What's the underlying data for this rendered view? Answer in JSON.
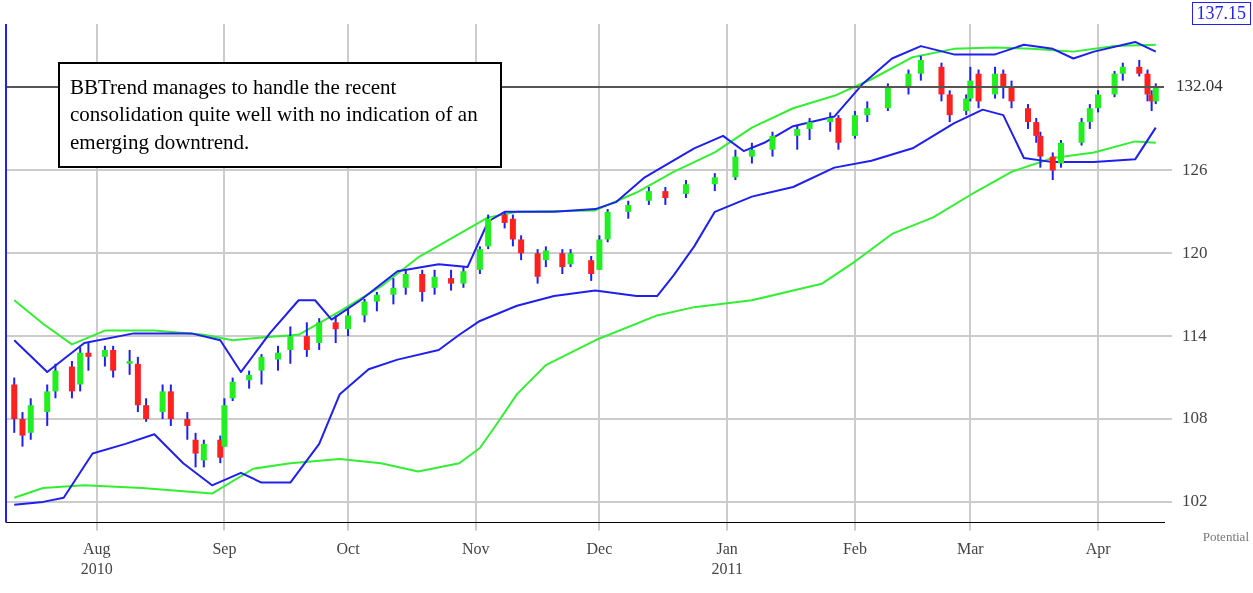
{
  "chart_data": {
    "type": "candlestick",
    "xlim": [
      "2010-07-10",
      "2011-04-17"
    ],
    "xticks": [
      {
        "value": "2010-08-01",
        "label": "Aug\n2010"
      },
      {
        "value": "2010-09-01",
        "label": "Sep"
      },
      {
        "value": "2010-10-01",
        "label": "Oct"
      },
      {
        "value": "2010-11-01",
        "label": "Nov"
      },
      {
        "value": "2010-12-01",
        "label": "Dec"
      },
      {
        "value": "2011-01-01",
        "label": "Jan\n2011"
      },
      {
        "value": "2011-02-01",
        "label": "Feb"
      },
      {
        "value": "2011-03-01",
        "label": "Mar"
      },
      {
        "value": "2011-04-01",
        "label": "Apr"
      }
    ],
    "ylim": [
      100.5,
      136.6
    ],
    "yticks": [
      102,
      108,
      114,
      120,
      126
    ],
    "grid": true,
    "legend": false,
    "ref_lines": [
      {
        "axis": "y",
        "value": 132.04,
        "label": "132.04",
        "color": "#555555"
      }
    ],
    "annotations": [
      "BBTrend manages to handle the recent consolidation quite well with no indication of an emerging downtrend.",
      "137.15",
      "Potential"
    ],
    "series": [
      {
        "color": "#2020ee",
        "x": [
          "2010-07-12",
          "2010-07-14",
          "2010-07-16",
          "2010-07-20",
          "2010-07-22",
          "2010-07-26",
          "2010-07-28",
          "2010-07-30",
          "2010-08-03",
          "2010-08-05",
          "2010-08-09",
          "2010-08-11",
          "2010-08-13",
          "2010-08-17",
          "2010-08-19",
          "2010-08-23",
          "2010-08-25",
          "2010-08-27",
          "2010-08-31",
          "2010-09-01",
          "2010-09-03",
          "2010-09-07",
          "2010-09-10",
          "2010-09-14",
          "2010-09-17",
          "2010-09-21",
          "2010-09-24",
          "2010-09-28",
          "2010-10-01",
          "2010-10-05",
          "2010-10-08",
          "2010-10-12",
          "2010-10-15",
          "2010-10-19",
          "2010-10-22",
          "2010-10-26",
          "2010-10-29",
          "2010-11-02",
          "2010-11-04",
          "2010-11-08",
          "2010-11-10",
          "2010-11-12",
          "2010-11-16",
          "2010-11-18",
          "2010-11-22",
          "2010-11-24",
          "2010-11-29",
          "2010-12-01",
          "2010-12-03",
          "2010-12-08",
          "2010-12-13",
          "2010-12-17",
          "2010-12-22",
          "2010-12-29",
          "2011-01-03",
          "2011-01-07",
          "2011-01-12",
          "2011-01-18",
          "2011-01-21",
          "2011-01-26",
          "2011-01-28",
          "2011-02-01",
          "2011-02-04",
          "2011-02-09",
          "2011-02-14",
          "2011-02-17",
          "2011-02-22",
          "2011-02-24",
          "2011-02-28",
          "2011-03-01",
          "2011-03-03",
          "2011-03-07",
          "2011-03-09",
          "2011-03-11",
          "2011-03-15",
          "2011-03-17",
          "2011-03-18",
          "2011-03-21",
          "2011-03-23",
          "2011-03-28",
          "2011-03-30",
          "2011-04-01",
          "2011-04-05",
          "2011-04-07",
          "2011-04-11",
          "2011-04-13",
          "2011-04-14",
          "2011-04-15"
        ],
        "ohlc": [
          [
            110.5,
            111,
            107,
            108
          ],
          [
            108,
            108.5,
            106,
            106.8
          ],
          [
            107,
            109.5,
            106.5,
            109
          ],
          [
            108.5,
            110.5,
            107.5,
            110
          ],
          [
            110,
            112,
            109.5,
            111.5
          ],
          [
            111.8,
            112.2,
            109.5,
            110
          ],
          [
            110.5,
            113.2,
            110,
            112.8
          ],
          [
            112.8,
            113.5,
            111.5,
            112.5
          ],
          [
            112.5,
            113.3,
            111.8,
            113
          ],
          [
            113,
            113.3,
            111,
            111.5
          ],
          [
            112,
            113,
            111.2,
            112.2
          ],
          [
            112,
            112.5,
            108.5,
            109
          ],
          [
            109,
            109.5,
            107.8,
            108
          ],
          [
            108.5,
            110.5,
            108,
            110
          ],
          [
            110,
            110.5,
            107.5,
            108
          ],
          [
            108,
            108.5,
            106.5,
            107.5
          ],
          [
            106.5,
            107,
            104.5,
            105.5
          ],
          [
            105,
            106.5,
            104.5,
            106.2
          ],
          [
            106.5,
            106.8,
            104.8,
            105.2
          ],
          [
            106,
            109.5,
            106,
            109
          ],
          [
            109.5,
            111,
            109.3,
            110.7
          ],
          [
            110.8,
            111.5,
            110.2,
            111.2
          ],
          [
            111.5,
            112.7,
            110.5,
            112.5
          ],
          [
            112.3,
            113.3,
            111.5,
            112.8
          ],
          [
            113,
            114.7,
            112,
            114
          ],
          [
            114,
            115,
            112.5,
            113
          ],
          [
            113.5,
            115.3,
            113,
            115
          ],
          [
            115,
            115.5,
            113.5,
            114.5
          ],
          [
            114.5,
            116,
            114,
            115.5
          ],
          [
            115.5,
            116.7,
            115,
            116.5
          ],
          [
            116.5,
            117.2,
            115.8,
            117
          ],
          [
            117,
            118.2,
            116.3,
            117.5
          ],
          [
            117.5,
            118.8,
            117,
            118.5
          ],
          [
            118.5,
            118.8,
            116.5,
            117.2
          ],
          [
            117.5,
            118.8,
            117,
            118.3
          ],
          [
            118.2,
            118.8,
            117.3,
            117.8
          ],
          [
            117.8,
            119,
            117.5,
            118.7
          ],
          [
            118.8,
            120.5,
            118.5,
            120.3
          ],
          [
            120.5,
            122.8,
            120.3,
            122.5
          ],
          [
            122.8,
            123,
            121.8,
            122.2
          ],
          [
            122.5,
            122.8,
            120.5,
            121
          ],
          [
            121,
            121.3,
            119.5,
            120
          ],
          [
            120,
            120.3,
            117.8,
            118.3
          ],
          [
            119.5,
            120.5,
            119,
            120.2
          ],
          [
            120,
            120.3,
            118.5,
            119
          ],
          [
            119.2,
            120.3,
            119,
            120
          ],
          [
            119.5,
            119.8,
            118,
            118.5
          ],
          [
            118.8,
            121.3,
            118.8,
            121
          ],
          [
            121,
            123.2,
            120.8,
            123
          ],
          [
            123,
            123.8,
            122.5,
            123.5
          ],
          [
            123.8,
            124.8,
            123.5,
            124.5
          ],
          [
            124.5,
            124.8,
            123.5,
            124
          ],
          [
            124.3,
            125.3,
            124,
            125
          ],
          [
            125,
            125.8,
            124.5,
            125.5
          ],
          [
            125.5,
            127.5,
            125.3,
            127
          ],
          [
            127,
            128,
            126.5,
            127.5
          ],
          [
            127.5,
            128.8,
            127,
            128.5
          ],
          [
            128.5,
            129.3,
            127.5,
            129
          ],
          [
            129,
            129.8,
            128.2,
            129.5
          ],
          [
            129.5,
            130.2,
            128.8,
            129.8
          ],
          [
            129.8,
            130,
            127.5,
            128
          ],
          [
            128.5,
            130.3,
            128.3,
            130
          ],
          [
            130,
            131,
            129.5,
            130.5
          ],
          [
            130.5,
            132.3,
            130.3,
            132
          ],
          [
            132,
            133.3,
            131.5,
            133
          ],
          [
            133,
            134.3,
            132.5,
            134
          ],
          [
            133.5,
            133.8,
            131,
            131.5
          ],
          [
            131.5,
            131.8,
            129.5,
            130
          ],
          [
            130.3,
            131.5,
            130,
            131.2
          ],
          [
            131.2,
            133.5,
            131,
            132.5
          ],
          [
            133,
            133.3,
            130.5,
            131
          ],
          [
            131.5,
            133.5,
            131.2,
            133
          ],
          [
            133,
            133.3,
            131.2,
            132
          ],
          [
            132,
            132.5,
            130.5,
            131
          ],
          [
            130.5,
            130.8,
            129,
            129.5
          ],
          [
            129.5,
            129.8,
            128,
            128.5
          ],
          [
            128.5,
            128.8,
            126.2,
            127
          ],
          [
            127,
            127.3,
            125.3,
            126
          ],
          [
            126.5,
            128.2,
            126.2,
            128
          ],
          [
            128,
            129.8,
            127.8,
            129.5
          ],
          [
            129.5,
            130.8,
            129,
            130.5
          ],
          [
            130.5,
            131.8,
            130.2,
            131.5
          ],
          [
            131.5,
            133.2,
            131.3,
            133
          ],
          [
            133,
            133.8,
            132.5,
            133.5
          ],
          [
            133.5,
            134,
            132.8,
            133
          ],
          [
            133,
            133.3,
            131,
            131.5
          ],
          [
            131.5,
            131.8,
            130.3,
            131
          ],
          [
            131,
            132.3,
            130.8,
            132
          ]
        ],
        "colors": [
          "#ff2020",
          "#ff2020",
          "#22ee22",
          "#22ee22",
          "#22ee22",
          "#ff2020",
          "#22ee22",
          "#ff2020",
          "#22ee22",
          "#ff2020",
          "#22ee22",
          "#ff2020",
          "#ff2020",
          "#22ee22",
          "#ff2020",
          "#ff2020",
          "#ff2020",
          "#22ee22",
          "#ff2020",
          "#22ee22",
          "#22ee22",
          "#22ee22",
          "#22ee22",
          "#22ee22",
          "#22ee22",
          "#ff2020",
          "#22ee22",
          "#ff2020",
          "#22ee22",
          "#22ee22",
          "#22ee22",
          "#22ee22",
          "#22ee22",
          "#ff2020",
          "#22ee22",
          "#ff2020",
          "#22ee22",
          "#22ee22",
          "#22ee22",
          "#ff2020",
          "#ff2020",
          "#ff2020",
          "#ff2020",
          "#22ee22",
          "#ff2020",
          "#22ee22",
          "#ff2020",
          "#22ee22",
          "#22ee22",
          "#22ee22",
          "#22ee22",
          "#ff2020",
          "#22ee22",
          "#22ee22",
          "#22ee22",
          "#22ee22",
          "#22ee22",
          "#22ee22",
          "#22ee22",
          "#22ee22",
          "#ff2020",
          "#22ee22",
          "#22ee22",
          "#22ee22",
          "#22ee22",
          "#22ee22",
          "#ff2020",
          "#ff2020",
          "#22ee22",
          "#22ee22",
          "#ff2020",
          "#22ee22",
          "#ff2020",
          "#ff2020",
          "#ff2020",
          "#ff2020",
          "#ff2020",
          "#ff2020",
          "#22ee22",
          "#22ee22",
          "#22ee22",
          "#22ee22",
          "#22ee22",
          "#22ee22",
          "#ff2020",
          "#ff2020",
          "#ff2020",
          "#22ee22"
        ]
      },
      {
        "type": "line",
        "color": "#2020ee",
        "x": [
          "2010-07-12",
          "2010-07-20",
          "2010-07-29",
          "2010-08-10",
          "2010-08-24",
          "2010-08-31",
          "2010-09-05",
          "2010-09-12",
          "2010-09-19",
          "2010-09-23",
          "2010-09-27",
          "2010-10-04",
          "2010-10-13",
          "2010-10-23",
          "2010-10-30",
          "2010-11-04",
          "2010-11-08",
          "2010-11-20",
          "2010-11-30",
          "2010-12-05",
          "2010-12-12",
          "2010-12-24",
          "2010-12-31",
          "2011-01-05",
          "2011-01-10",
          "2011-01-17",
          "2011-01-27",
          "2011-02-03",
          "2011-02-10",
          "2011-02-17",
          "2011-02-25",
          "2011-03-07",
          "2011-03-14",
          "2011-03-21",
          "2011-03-26",
          "2011-03-31",
          "2011-04-10",
          "2011-04-15"
        ],
        "values": [
          113.7,
          111.4,
          113.5,
          114.2,
          114.2,
          113.7,
          111.4,
          114.2,
          116.6,
          116.6,
          115.2,
          116.6,
          118.7,
          119.2,
          119,
          122.3,
          123,
          123,
          123.2,
          123.7,
          125.5,
          127.6,
          128.5,
          127.4,
          128,
          129.2,
          129.9,
          132.3,
          134.1,
          135,
          134.4,
          134.4,
          135.1,
          134.8,
          134.1,
          134.6,
          135.3,
          134.6
        ]
      },
      {
        "type": "line",
        "color": "#2020ee",
        "x": [
          "2010-07-12",
          "2010-07-19",
          "2010-07-24",
          "2010-07-31",
          "2010-08-08",
          "2010-08-15",
          "2010-08-22",
          "2010-08-29",
          "2010-09-05",
          "2010-09-10",
          "2010-09-17",
          "2010-09-24",
          "2010-09-29",
          "2010-10-06",
          "2010-10-13",
          "2010-10-23",
          "2010-10-28",
          "2010-11-02",
          "2010-11-11",
          "2010-11-20",
          "2010-11-30",
          "2010-12-10",
          "2010-12-15",
          "2010-12-19",
          "2010-12-24",
          "2010-12-29",
          "2011-01-07",
          "2011-01-17",
          "2011-01-27",
          "2011-02-05",
          "2011-02-15",
          "2011-02-25",
          "2011-03-04",
          "2011-03-09",
          "2011-03-14",
          "2011-03-21",
          "2011-03-31",
          "2011-04-10",
          "2011-04-15"
        ],
        "values": [
          101.8,
          102,
          102.3,
          105.5,
          106.2,
          106.9,
          104.8,
          103.2,
          104.1,
          103.4,
          103.4,
          106.2,
          109.8,
          111.6,
          112.3,
          113,
          114.1,
          115.1,
          116.2,
          116.9,
          117.3,
          116.9,
          116.9,
          118.4,
          120.5,
          123,
          124.1,
          124.8,
          126.2,
          126.7,
          127.6,
          129.4,
          130.4,
          130,
          126.9,
          126.6,
          126.6,
          126.8,
          129.1
        ]
      },
      {
        "type": "line",
        "color": "#33ee33",
        "x": [
          "2010-07-12",
          "2010-07-19",
          "2010-07-26",
          "2010-08-03",
          "2010-08-15",
          "2010-08-27",
          "2010-09-03",
          "2010-09-10",
          "2010-09-19",
          "2010-09-29",
          "2010-10-09",
          "2010-10-18",
          "2010-10-28",
          "2010-11-04",
          "2010-11-11",
          "2010-11-30",
          "2010-12-10",
          "2010-12-19",
          "2010-12-29",
          "2011-01-07",
          "2011-01-17",
          "2011-01-27",
          "2011-02-05",
          "2011-02-15",
          "2011-02-25",
          "2011-03-07",
          "2011-03-16",
          "2011-03-26",
          "2011-04-05",
          "2011-04-15"
        ],
        "values": [
          116.6,
          114.9,
          113.4,
          114.4,
          114.4,
          114.1,
          113.7,
          113.9,
          114.1,
          115.8,
          117.6,
          119.7,
          121.4,
          122.6,
          123,
          123.1,
          124.4,
          125.9,
          127.3,
          129.1,
          130.5,
          131.4,
          132.6,
          134.2,
          134.8,
          134.9,
          134.8,
          134.6,
          135,
          135.1
        ]
      },
      {
        "type": "line",
        "color": "#33ee33",
        "x": [
          "2010-07-12",
          "2010-07-19",
          "2010-07-29",
          "2010-08-12",
          "2010-08-29",
          "2010-09-08",
          "2010-09-17",
          "2010-09-29",
          "2010-10-09",
          "2010-10-18",
          "2010-10-28",
          "2010-11-02",
          "2010-11-06",
          "2010-11-11",
          "2010-11-18",
          "2010-11-30",
          "2010-12-15",
          "2010-12-24",
          "2011-01-07",
          "2011-01-17",
          "2011-01-24",
          "2011-02-01",
          "2011-02-10",
          "2011-02-20",
          "2011-03-02",
          "2011-03-11",
          "2011-03-21",
          "2011-03-31",
          "2011-04-10",
          "2011-04-15"
        ],
        "values": [
          102.3,
          103,
          103.2,
          103,
          102.6,
          104.4,
          104.8,
          105.1,
          104.8,
          104.2,
          104.8,
          105.9,
          107.6,
          109.8,
          111.9,
          113.7,
          115.5,
          116.1,
          116.6,
          117.3,
          117.8,
          119.4,
          121.4,
          122.6,
          124.4,
          125.9,
          126.9,
          127.3,
          128.1,
          128
        ]
      }
    ]
  }
}
